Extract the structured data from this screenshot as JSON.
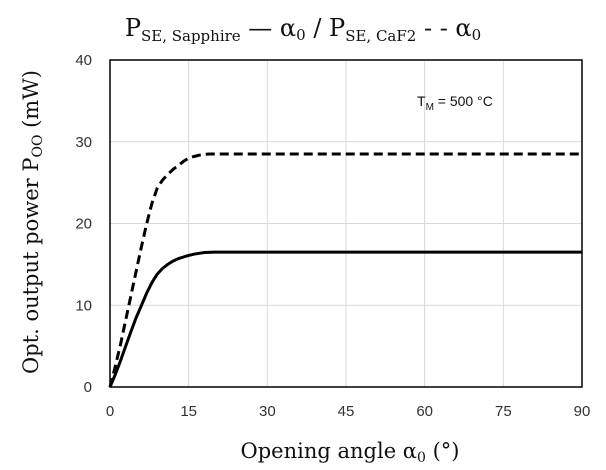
{
  "chart_data": {
    "type": "line",
    "title": {
      "p1": "P",
      "sub1": "SE, Sapphire",
      "mid": " — α",
      "sub_a1": "0",
      "sep": " / P",
      "sub2": "SE, CaF2",
      "end": " - - α",
      "sub_a2": "0"
    },
    "xlabel": {
      "main": "Opening angle α",
      "sub": "0",
      "unit": " (°)"
    },
    "ylabel": {
      "main": "Opt. output power P",
      "sub": "OO",
      "unit": " (mW)"
    },
    "annotation": {
      "main": "T",
      "sub": "M",
      "rest": " = 500 °C"
    },
    "xlim": [
      0,
      90
    ],
    "ylim": [
      0,
      40
    ],
    "xticks": [
      0,
      15,
      30,
      45,
      60,
      75,
      90
    ],
    "yticks": [
      0,
      10,
      20,
      30,
      40
    ],
    "grid": true,
    "series": [
      {
        "style": "solid",
        "color": "#000000",
        "points": [
          [
            0,
            0
          ],
          [
            1,
            1.5
          ],
          [
            2,
            3.2
          ],
          [
            3,
            5
          ],
          [
            4,
            6.8
          ],
          [
            5,
            8.5
          ],
          [
            6,
            10
          ],
          [
            7,
            11.5
          ],
          [
            8,
            12.8
          ],
          [
            9,
            13.8
          ],
          [
            10,
            14.5
          ],
          [
            11,
            15
          ],
          [
            12,
            15.4
          ],
          [
            13,
            15.7
          ],
          [
            14,
            15.9
          ],
          [
            15,
            16.1
          ],
          [
            16,
            16.25
          ],
          [
            17,
            16.35
          ],
          [
            18,
            16.45
          ],
          [
            20,
            16.5
          ],
          [
            90,
            16.5
          ]
        ]
      },
      {
        "style": "dashed",
        "color": "#000000",
        "points": [
          [
            0,
            0
          ],
          [
            1,
            2.5
          ],
          [
            2,
            5.2
          ],
          [
            3,
            8.2
          ],
          [
            4,
            11.2
          ],
          [
            5,
            14.2
          ],
          [
            6,
            17.2
          ],
          [
            7,
            20
          ],
          [
            8,
            22.5
          ],
          [
            9,
            24.3
          ],
          [
            10,
            25.3
          ],
          [
            11,
            26
          ],
          [
            12,
            26.6
          ],
          [
            13,
            27.1
          ],
          [
            14,
            27.6
          ],
          [
            15,
            28
          ],
          [
            16,
            28.2
          ],
          [
            17,
            28.35
          ],
          [
            18,
            28.45
          ],
          [
            19,
            28.5
          ],
          [
            90,
            28.5
          ]
        ]
      }
    ]
  }
}
